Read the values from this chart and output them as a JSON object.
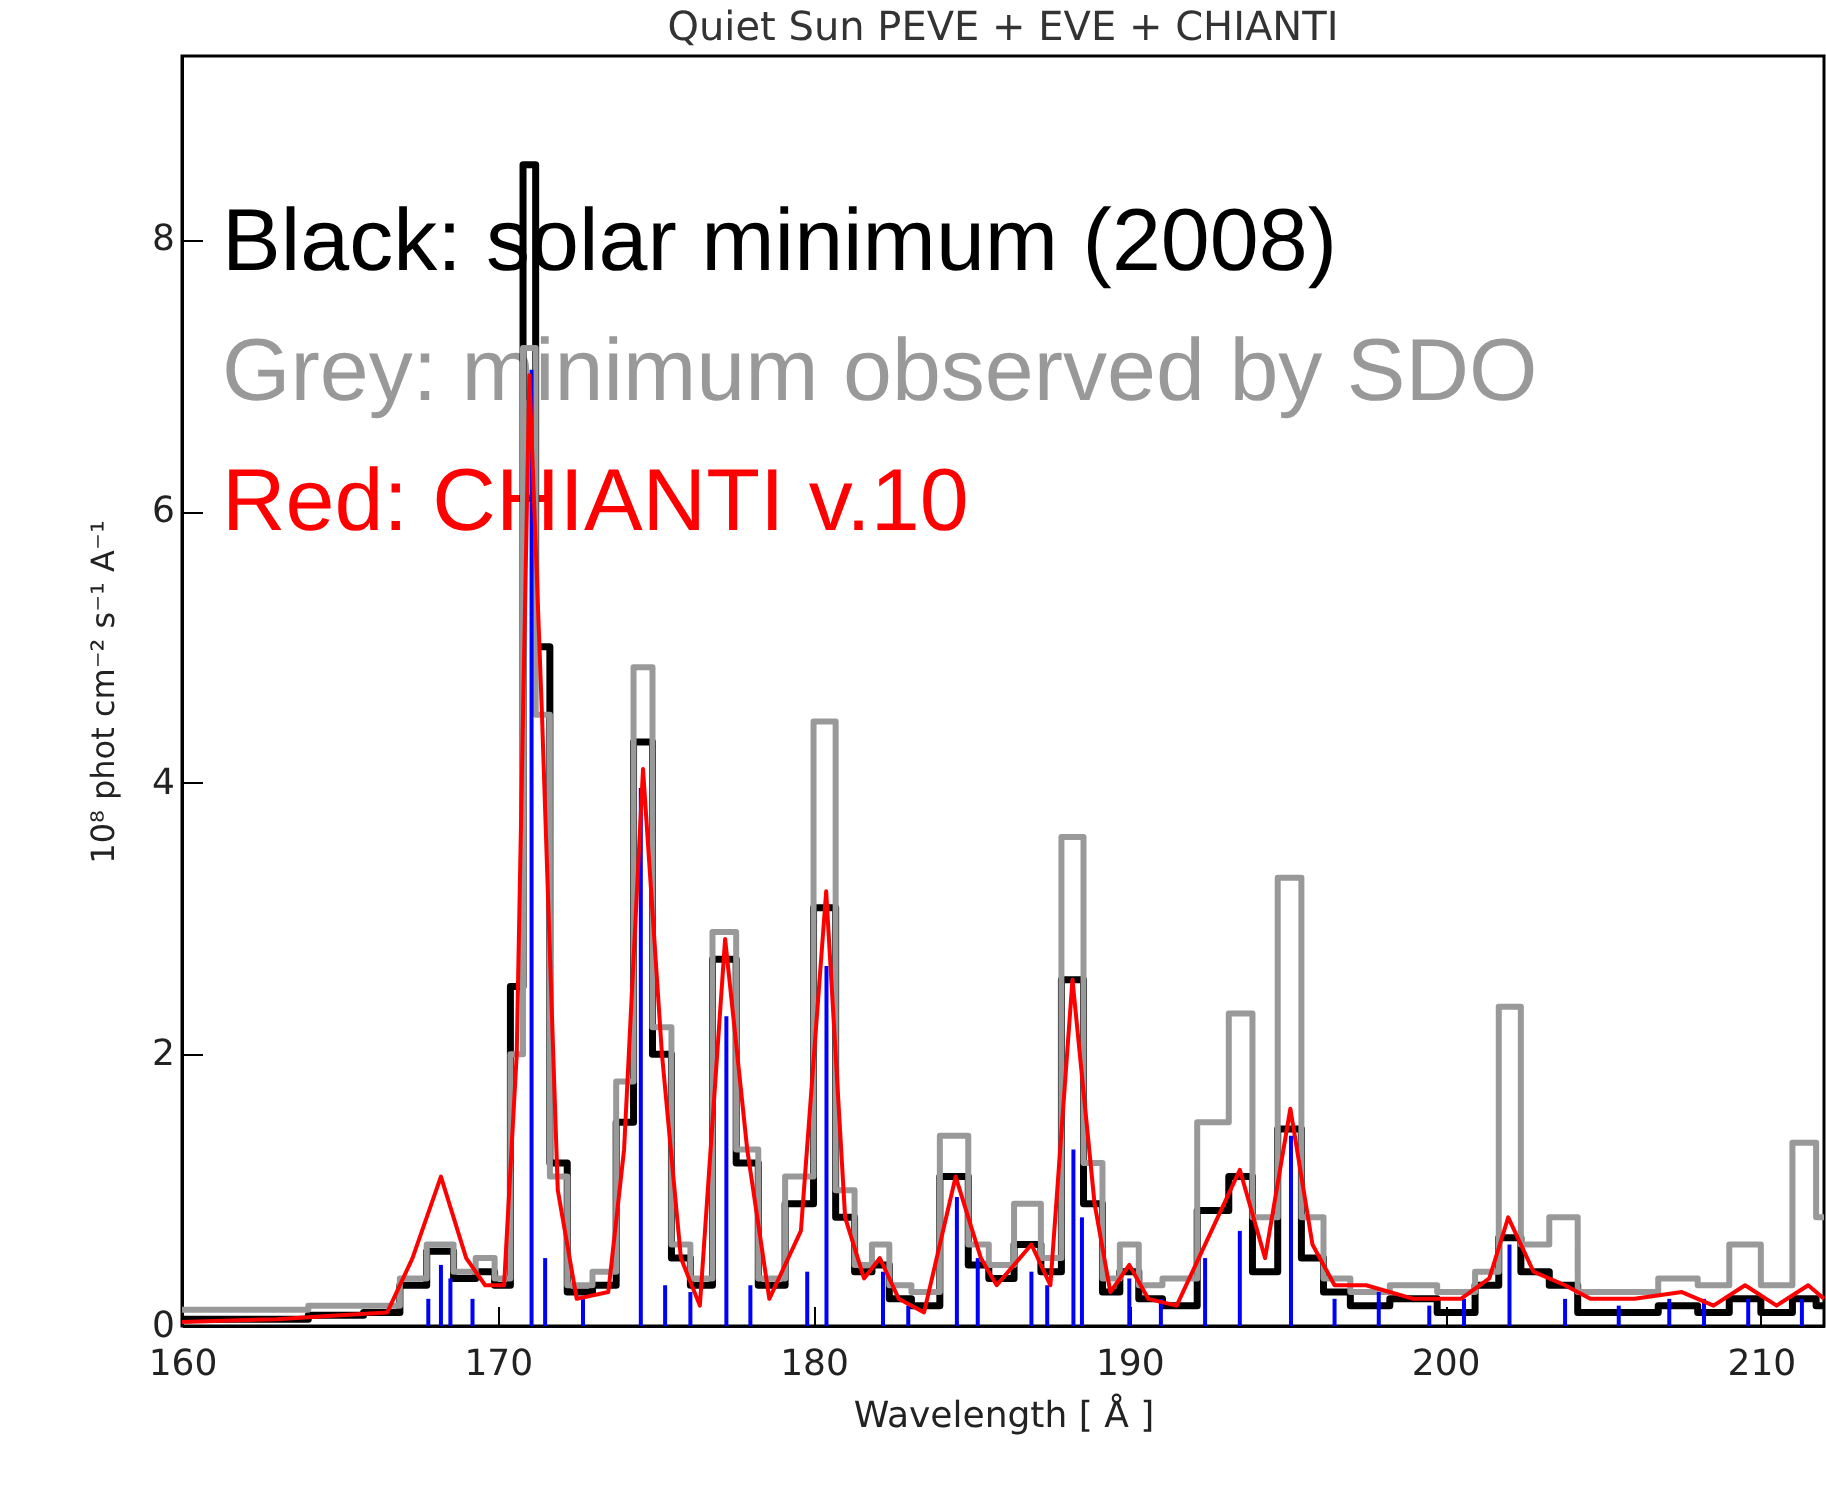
{
  "chart_data": {
    "type": "line",
    "title": "Quiet Sun PEVE + EVE + CHIANTI",
    "xlabel": "Wavelength [ Å ]",
    "ylabel": "10⁸ phot cm⁻² s⁻¹ A⁻¹",
    "x": [
      160,
      163,
      165,
      166.5,
      167.3,
      168.2,
      169,
      169.6,
      170.2,
      170.6,
      171.0,
      171.4,
      171.9,
      172.5,
      173.5,
      174.0,
      174.6,
      175.2,
      175.8,
      176.4,
      177.2,
      177.9,
      178.6,
      179.6,
      180.4,
      181.0,
      181.6,
      182.1,
      182.7,
      183.5,
      184.5,
      185.3,
      185.8,
      186.9,
      187.5,
      188.2,
      188.9,
      189.4,
      190.0,
      190.6,
      191.5,
      192.8,
      193.5,
      194.3,
      195.1,
      195.8,
      196.5,
      197.5,
      199,
      200.5,
      201.4,
      202.0,
      202.8,
      203.8,
      204.6,
      206,
      207.5,
      208.5,
      209.5,
      210.5,
      211.5,
      212
    ],
    "series": [
      {
        "name": "Black: solar minimum (2008)",
        "type": "step",
        "color": "#000000",
        "values": [
          0.05,
          0.05,
          0.08,
          0.1,
          0.3,
          0.55,
          0.35,
          0.4,
          0.3,
          2.5,
          8.55,
          5.0,
          1.2,
          0.25,
          0.3,
          1.5,
          4.3,
          2.0,
          0.5,
          0.3,
          2.7,
          1.2,
          0.3,
          0.9,
          3.08,
          0.8,
          0.4,
          0.45,
          0.2,
          0.15,
          1.1,
          0.45,
          0.35,
          0.6,
          0.4,
          2.55,
          0.9,
          0.25,
          0.4,
          0.2,
          0.15,
          0.85,
          1.1,
          0.4,
          1.45,
          0.5,
          0.25,
          0.15,
          0.2,
          0.1,
          0.3,
          0.65,
          0.4,
          0.3,
          0.1,
          0.1,
          0.15,
          0.1,
          0.2,
          0.1,
          0.2,
          0.15
        ]
      },
      {
        "name": "Grey: minimum observed by SDO",
        "type": "step",
        "color": "#999999",
        "values": [
          0.12,
          0.12,
          0.15,
          0.15,
          0.35,
          0.6,
          0.4,
          0.5,
          0.35,
          2.0,
          7.2,
          4.5,
          1.1,
          0.3,
          0.4,
          1.8,
          4.85,
          2.2,
          0.6,
          0.35,
          2.9,
          1.3,
          0.35,
          1.1,
          4.45,
          1.0,
          0.45,
          0.6,
          0.3,
          0.25,
          1.4,
          0.6,
          0.45,
          0.9,
          0.5,
          3.6,
          1.2,
          0.35,
          0.6,
          0.3,
          0.35,
          1.5,
          2.3,
          0.8,
          3.3,
          0.8,
          0.35,
          0.25,
          0.3,
          0.25,
          0.4,
          2.35,
          0.6,
          0.8,
          0.25,
          0.25,
          0.35,
          0.3,
          0.6,
          0.3,
          1.35,
          0.8
        ]
      },
      {
        "type": "bar",
        "color": "#0000ff",
        "x": [
          167.8,
          168.2,
          168.5,
          169.2,
          171.07,
          171.5,
          172.7,
          174.53,
          175.3,
          176.1,
          177.24,
          178.0,
          179.8,
          180.41,
          182.2,
          183.0,
          184.54,
          185.2,
          186.9,
          187.4,
          188.23,
          188.5,
          190.0,
          191.0,
          192.4,
          193.5,
          195.12,
          196.5,
          197.9,
          199.5,
          200.6,
          202.04,
          203.8,
          205.5,
          207.1,
          208.2,
          209.6,
          211.3
        ],
        "values": [
          0.2,
          0.45,
          0.35,
          0.2,
          7.04,
          0.5,
          0.2,
          3.96,
          0.3,
          0.25,
          2.28,
          0.3,
          0.4,
          2.65,
          0.4,
          0.15,
          0.95,
          0.5,
          0.4,
          0.3,
          1.3,
          0.8,
          0.35,
          0.2,
          0.5,
          0.7,
          1.4,
          0.2,
          0.25,
          0.15,
          0.2,
          0.6,
          0.2,
          0.15,
          0.2,
          0.2,
          0.2,
          0.2
        ]
      },
      {
        "name": "Red: CHIANTI v.10",
        "color": "#ff0000",
        "values": [
          0.03,
          0.05,
          0.08,
          0.1,
          0.5,
          1.1,
          0.5,
          0.3,
          0.3,
          2.0,
          7.0,
          4.5,
          1.0,
          0.2,
          0.25,
          1.3,
          4.1,
          2.0,
          0.5,
          0.15,
          2.85,
          1.3,
          0.2,
          0.7,
          3.2,
          0.8,
          0.35,
          0.5,
          0.2,
          0.1,
          1.1,
          0.5,
          0.3,
          0.6,
          0.3,
          2.55,
          0.9,
          0.25,
          0.45,
          0.2,
          0.15,
          0.8,
          1.15,
          0.5,
          1.6,
          0.6,
          0.3,
          0.3,
          0.2,
          0.2,
          0.35,
          0.8,
          0.4,
          0.3,
          0.2,
          0.2,
          0.25,
          0.15,
          0.3,
          0.15,
          0.3,
          0.2
        ]
      }
    ],
    "xlim": [
      160,
      212
    ],
    "xticks": [
      160,
      170,
      180,
      190,
      200,
      210
    ],
    "ylim": [
      0,
      9.35
    ],
    "yticks": [
      0,
      2,
      4,
      6,
      8
    ],
    "legend": "top left"
  }
}
